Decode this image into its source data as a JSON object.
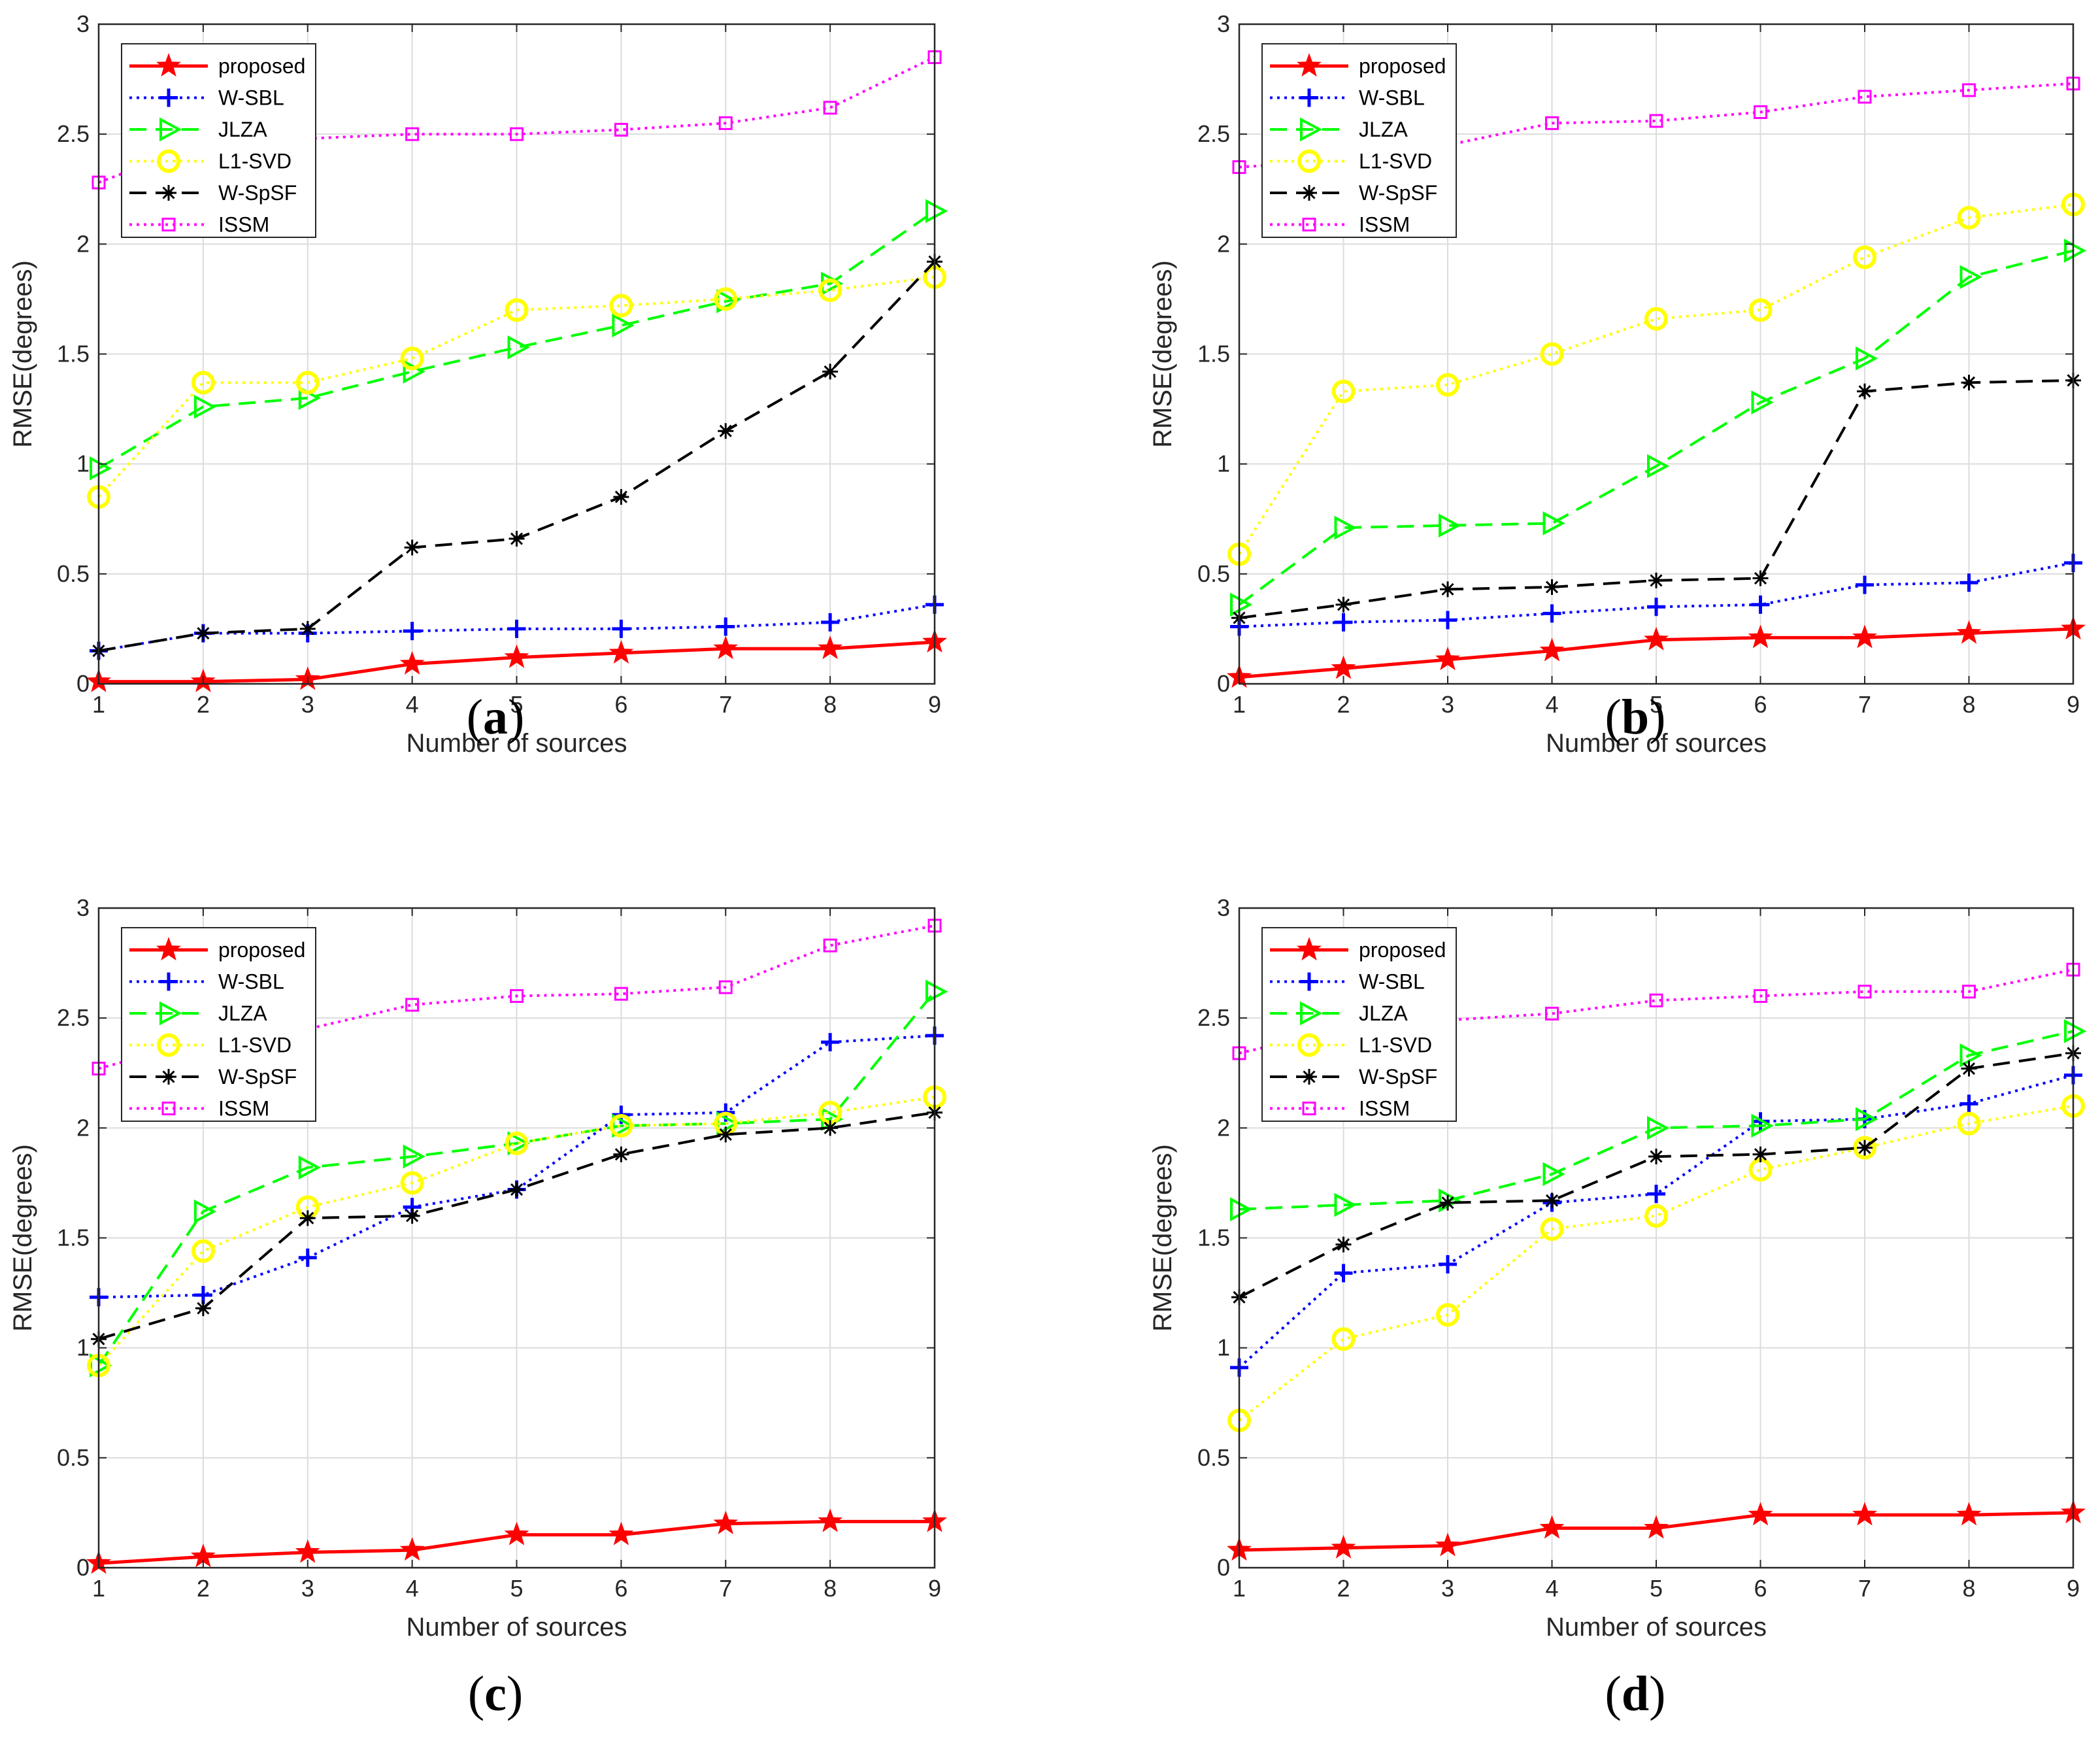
{
  "chart_data": [
    {
      "type": "line",
      "panel": "a",
      "caption": "(a)",
      "xlabel": "Number of sources",
      "ylabel": "RMSE(degrees)",
      "x": [
        1,
        2,
        3,
        4,
        5,
        6,
        7,
        8,
        9
      ],
      "xlim": [
        1,
        9
      ],
      "ylim": [
        0,
        3
      ],
      "xticks": [
        "1",
        "2",
        "3",
        "4",
        "5",
        "6",
        "7",
        "8",
        "9"
      ],
      "yticks": [
        "0",
        "0.5",
        "1",
        "1.5",
        "2",
        "2.5",
        "3"
      ],
      "grid": true,
      "legend_position": "top-left",
      "series": [
        {
          "name": "proposed",
          "color": "#ff0000",
          "marker": "star",
          "dash": "solid",
          "values": [
            0.01,
            0.01,
            0.02,
            0.09,
            0.12,
            0.14,
            0.16,
            0.16,
            0.19
          ]
        },
        {
          "name": "W-SBL",
          "color": "#0000ff",
          "marker": "plus",
          "dash": "dotted",
          "values": [
            0.15,
            0.23,
            0.23,
            0.24,
            0.25,
            0.25,
            0.26,
            0.28,
            0.36
          ]
        },
        {
          "name": "JLZA",
          "color": "#00ff00",
          "marker": "triangle-right",
          "dash": "dashed",
          "values": [
            0.98,
            1.26,
            1.3,
            1.42,
            1.53,
            1.63,
            1.74,
            1.82,
            2.15
          ]
        },
        {
          "name": "L1-SVD",
          "color": "#ffff00",
          "marker": "circle",
          "dash": "dotted",
          "values": [
            0.85,
            1.37,
            1.37,
            1.48,
            1.7,
            1.72,
            1.75,
            1.79,
            1.85
          ]
        },
        {
          "name": "W-SpSF",
          "color": "#000000",
          "marker": "asterisk",
          "dash": "dashed",
          "values": [
            0.15,
            0.23,
            0.25,
            0.62,
            0.66,
            0.85,
            1.15,
            1.42,
            1.92
          ]
        },
        {
          "name": "ISSM",
          "color": "#ff00ff",
          "marker": "square",
          "dash": "dotted",
          "values": [
            2.28,
            2.46,
            2.48,
            2.5,
            2.5,
            2.52,
            2.55,
            2.62,
            2.85
          ]
        }
      ]
    },
    {
      "type": "line",
      "panel": "b",
      "caption": "(b)",
      "xlabel": "Number of sources",
      "ylabel": "RMSE(degrees)",
      "x": [
        1,
        2,
        3,
        4,
        5,
        6,
        7,
        8,
        9
      ],
      "xlim": [
        1,
        9
      ],
      "ylim": [
        0,
        3
      ],
      "xticks": [
        "1",
        "2",
        "3",
        "4",
        "5",
        "6",
        "7",
        "8",
        "9"
      ],
      "yticks": [
        "0",
        "0.5",
        "1",
        "1.5",
        "2",
        "2.5",
        "3"
      ],
      "grid": true,
      "legend_position": "top-left",
      "series": [
        {
          "name": "proposed",
          "color": "#ff0000",
          "marker": "star",
          "dash": "solid",
          "values": [
            0.03,
            0.07,
            0.11,
            0.15,
            0.2,
            0.21,
            0.21,
            0.23,
            0.25
          ]
        },
        {
          "name": "W-SBL",
          "color": "#0000ff",
          "marker": "plus",
          "dash": "dotted",
          "values": [
            0.26,
            0.28,
            0.29,
            0.32,
            0.35,
            0.36,
            0.45,
            0.46,
            0.55
          ]
        },
        {
          "name": "JLZA",
          "color": "#00ff00",
          "marker": "triangle-right",
          "dash": "dashed",
          "values": [
            0.36,
            0.71,
            0.72,
            0.73,
            0.99,
            1.28,
            1.48,
            1.85,
            1.97
          ]
        },
        {
          "name": "L1-SVD",
          "color": "#ffff00",
          "marker": "circle",
          "dash": "dotted",
          "values": [
            0.59,
            1.33,
            1.36,
            1.5,
            1.66,
            1.7,
            1.94,
            2.12,
            2.18
          ]
        },
        {
          "name": "W-SpSF",
          "color": "#000000",
          "marker": "asterisk",
          "dash": "dashed",
          "values": [
            0.3,
            0.36,
            0.43,
            0.44,
            0.47,
            0.48,
            1.33,
            1.37,
            1.38
          ]
        },
        {
          "name": "ISSM",
          "color": "#ff00ff",
          "marker": "square",
          "dash": "dotted",
          "values": [
            2.35,
            2.38,
            2.45,
            2.55,
            2.56,
            2.6,
            2.67,
            2.7,
            2.73
          ]
        }
      ]
    },
    {
      "type": "line",
      "panel": "c",
      "caption": "(c)",
      "xlabel": "Number of sources",
      "ylabel": "RMSE(degrees)",
      "x": [
        1,
        2,
        3,
        4,
        5,
        6,
        7,
        8,
        9
      ],
      "xlim": [
        1,
        9
      ],
      "ylim": [
        0,
        3
      ],
      "xticks": [
        "1",
        "2",
        "3",
        "4",
        "5",
        "6",
        "7",
        "8",
        "9"
      ],
      "yticks": [
        "0",
        "0.5",
        "1",
        "1.5",
        "2",
        "2.5",
        "3"
      ],
      "grid": true,
      "legend_position": "top-left",
      "series": [
        {
          "name": "proposed",
          "color": "#ff0000",
          "marker": "star",
          "dash": "solid",
          "values": [
            0.02,
            0.05,
            0.07,
            0.08,
            0.15,
            0.15,
            0.2,
            0.21,
            0.21
          ]
        },
        {
          "name": "W-SBL",
          "color": "#0000ff",
          "marker": "plus",
          "dash": "dotted",
          "values": [
            1.23,
            1.24,
            1.41,
            1.64,
            1.72,
            2.06,
            2.07,
            2.39,
            2.42
          ]
        },
        {
          "name": "JLZA",
          "color": "#00ff00",
          "marker": "triangle-right",
          "dash": "dashed",
          "values": [
            0.92,
            1.62,
            1.82,
            1.87,
            1.93,
            2.01,
            2.02,
            2.04,
            2.62
          ]
        },
        {
          "name": "L1-SVD",
          "color": "#ffff00",
          "marker": "circle",
          "dash": "dotted",
          "values": [
            0.92,
            1.44,
            1.64,
            1.75,
            1.93,
            2.01,
            2.02,
            2.07,
            2.14
          ]
        },
        {
          "name": "W-SpSF",
          "color": "#000000",
          "marker": "asterisk",
          "dash": "dashed",
          "values": [
            1.04,
            1.18,
            1.59,
            1.6,
            1.72,
            1.88,
            1.97,
            2.0,
            2.07
          ]
        },
        {
          "name": "ISSM",
          "color": "#ff00ff",
          "marker": "square",
          "dash": "dotted",
          "values": [
            2.27,
            2.4,
            2.45,
            2.56,
            2.6,
            2.61,
            2.64,
            2.83,
            2.92
          ]
        }
      ]
    },
    {
      "type": "line",
      "panel": "d",
      "caption": "(d)",
      "xlabel": "Number of sources",
      "ylabel": "RMSE(degrees)",
      "x": [
        1,
        2,
        3,
        4,
        5,
        6,
        7,
        8,
        9
      ],
      "xlim": [
        1,
        9
      ],
      "ylim": [
        0,
        3
      ],
      "xticks": [
        "1",
        "2",
        "3",
        "4",
        "5",
        "6",
        "7",
        "8",
        "9"
      ],
      "yticks": [
        "0",
        "0.5",
        "1",
        "1.5",
        "2",
        "2.5",
        "3"
      ],
      "grid": true,
      "legend_position": "top-left",
      "series": [
        {
          "name": "proposed",
          "color": "#ff0000",
          "marker": "star",
          "dash": "solid",
          "values": [
            0.08,
            0.09,
            0.1,
            0.18,
            0.18,
            0.24,
            0.24,
            0.24,
            0.25
          ]
        },
        {
          "name": "W-SBL",
          "color": "#0000ff",
          "marker": "plus",
          "dash": "dotted",
          "values": [
            0.91,
            1.34,
            1.38,
            1.66,
            1.7,
            2.03,
            2.04,
            2.11,
            2.24
          ]
        },
        {
          "name": "JLZA",
          "color": "#00ff00",
          "marker": "triangle-right",
          "dash": "dashed",
          "values": [
            1.63,
            1.65,
            1.67,
            1.79,
            2.0,
            2.01,
            2.04,
            2.33,
            2.44
          ]
        },
        {
          "name": "L1-SVD",
          "color": "#ffff00",
          "marker": "circle",
          "dash": "dotted",
          "values": [
            0.67,
            1.04,
            1.15,
            1.54,
            1.6,
            1.81,
            1.91,
            2.02,
            2.1
          ]
        },
        {
          "name": "W-SpSF",
          "color": "#000000",
          "marker": "asterisk",
          "dash": "dashed",
          "values": [
            1.23,
            1.47,
            1.66,
            1.67,
            1.87,
            1.88,
            1.91,
            2.27,
            2.34
          ]
        },
        {
          "name": "ISSM",
          "color": "#ff00ff",
          "marker": "square",
          "dash": "dotted",
          "values": [
            2.34,
            2.45,
            2.49,
            2.52,
            2.58,
            2.6,
            2.62,
            2.62,
            2.72
          ]
        }
      ]
    }
  ]
}
